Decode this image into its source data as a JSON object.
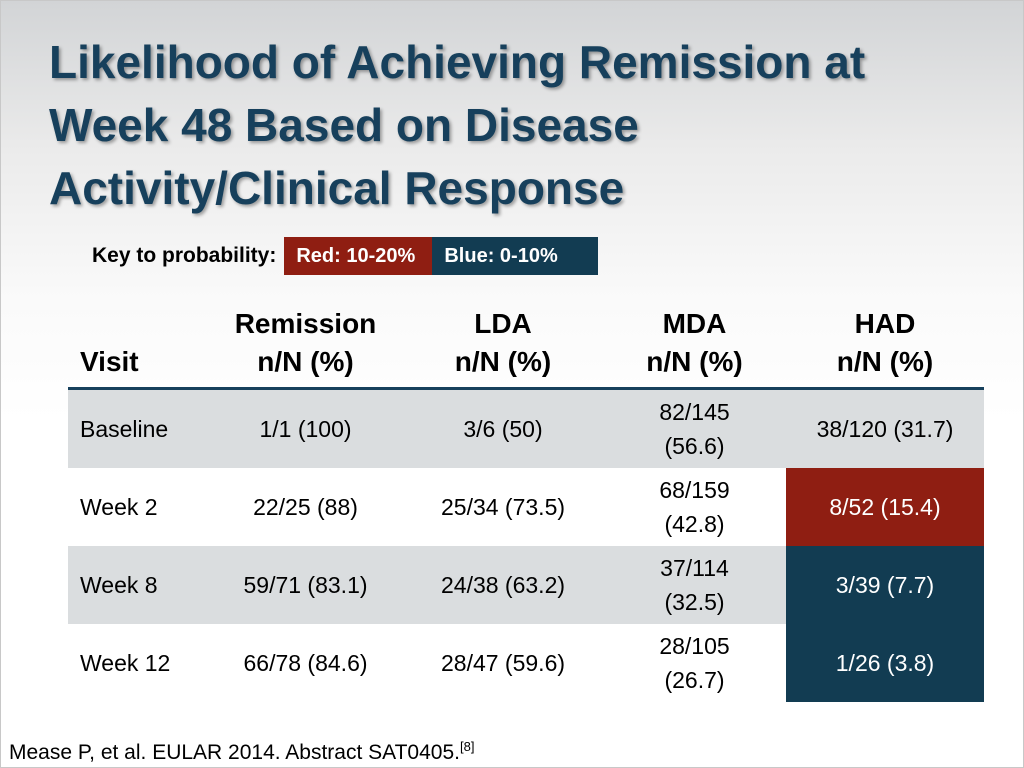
{
  "title": {
    "line1": "Likelihood of Achieving Remission at",
    "line2": "Week 48 Based on Disease",
    "line3": "Activity/Clinical Response"
  },
  "key": {
    "label": "Key to probability:",
    "red": "Red: 10-20%",
    "blue": "Blue: 0-10%",
    "red_color": "#8f1e12",
    "blue_color": "#123c52"
  },
  "table": {
    "headers": [
      {
        "line1": "",
        "line2": "Visit"
      },
      {
        "line1": "Remission",
        "line2": "n/N (%)"
      },
      {
        "line1": "LDA",
        "line2": "n/N (%)"
      },
      {
        "line1": "MDA",
        "line2": "n/N (%)"
      },
      {
        "line1": "HAD",
        "line2": "n/N (%)"
      }
    ],
    "rows": [
      {
        "visit": "Baseline",
        "remission": "1/1 (100)",
        "lda": "3/6 (50)",
        "mda_1": "82/145",
        "mda_2": "(56.6)",
        "had": "38/120 (31.7)",
        "had_highlight": "none"
      },
      {
        "visit": "Week 2",
        "remission": "22/25 (88)",
        "lda": "25/34 (73.5)",
        "mda_1": "68/159",
        "mda_2": "(42.8)",
        "had": "8/52 (15.4)",
        "had_highlight": "red"
      },
      {
        "visit": "Week 8",
        "remission": "59/71 (83.1)",
        "lda": "24/38 (63.2)",
        "mda_1": "37/114",
        "mda_2": "(32.5)",
        "had": "3/39 (7.7)",
        "had_highlight": "blue"
      },
      {
        "visit": "Week 12",
        "remission": "66/78 (84.6)",
        "lda": "28/47 (59.6)",
        "mda_1": "28/105",
        "mda_2": "(26.7)",
        "had": "1/26 (3.8)",
        "had_highlight": "blue"
      }
    ]
  },
  "footnote": {
    "text": "Mease P, et al. EULAR 2014. Abstract SAT0405.",
    "ref": "[8]"
  }
}
